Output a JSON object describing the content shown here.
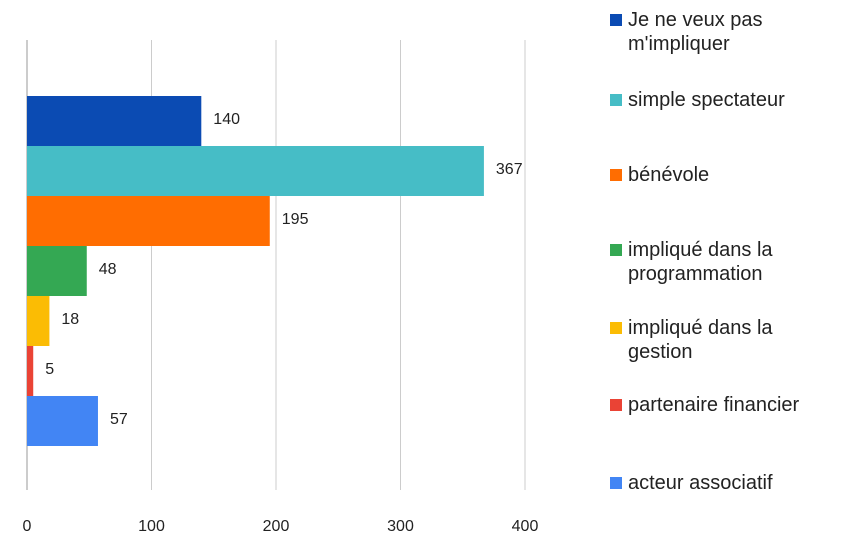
{
  "chart_data": {
    "type": "bar",
    "orientation": "horizontal",
    "series": [
      {
        "name": "Je ne veux pas m'impliquer",
        "color": "#0b4bb3",
        "values": [
          140
        ]
      },
      {
        "name": "simple spectateur",
        "color": "#46bdc6",
        "values": [
          367
        ]
      },
      {
        "name": "bénévole",
        "color": "#ff6d01",
        "values": [
          195
        ]
      },
      {
        "name": "impliqué dans la programmation",
        "color": "#34a853",
        "values": [
          48
        ]
      },
      {
        "name": "impliqué dans la gestion",
        "color": "#fbbc04",
        "values": [
          18
        ]
      },
      {
        "name": "partenaire financier",
        "color": "#ea4335",
        "values": [
          5
        ]
      },
      {
        "name": "acteur associatif",
        "color": "#4285f4",
        "values": [
          57
        ]
      }
    ],
    "xlim": [
      0,
      400
    ],
    "xticks": [
      0,
      100,
      200,
      300,
      400
    ],
    "grid": true,
    "legend": "right"
  }
}
